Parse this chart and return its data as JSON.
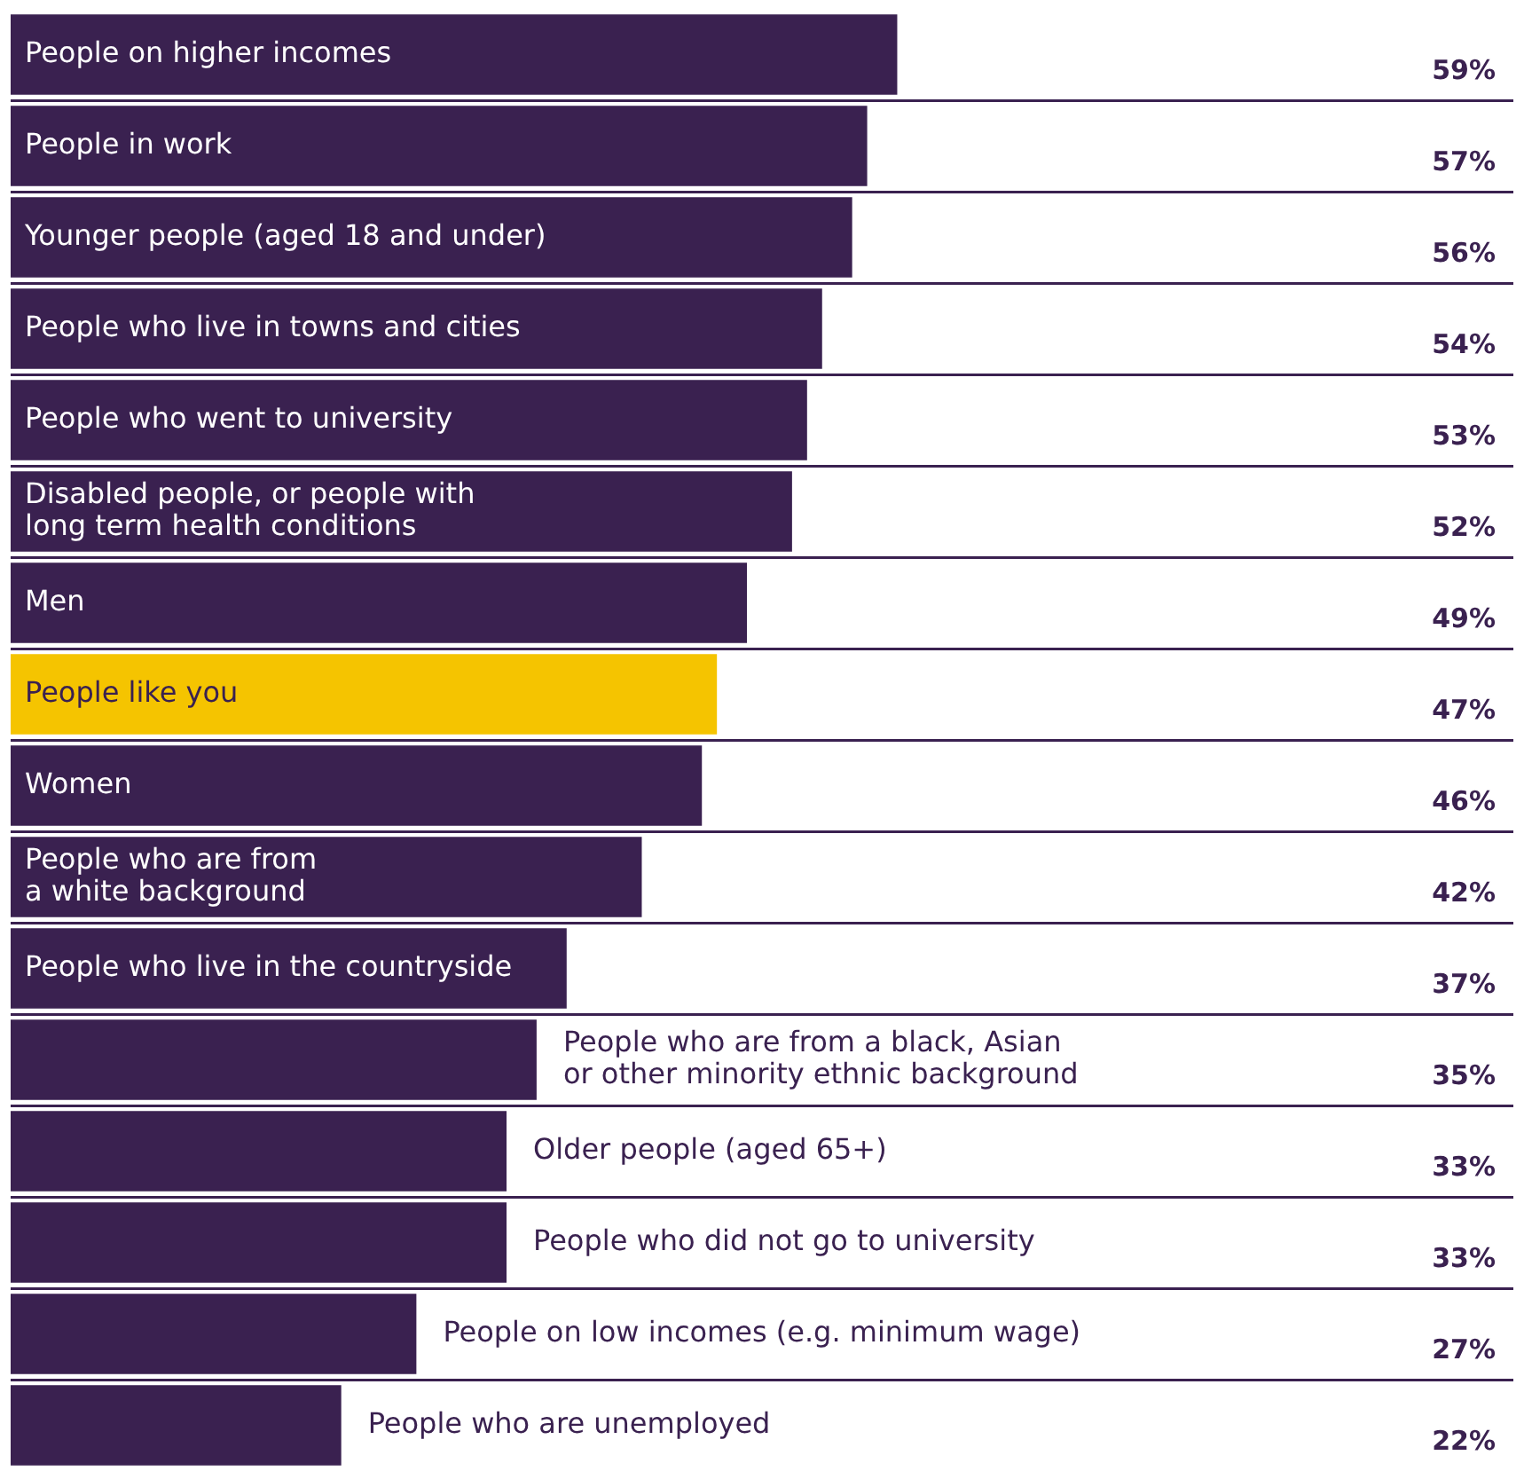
{
  "chart_data": {
    "type": "bar",
    "orientation": "horizontal",
    "categories": [
      "People on higher incomes",
      "People in work",
      "Younger people (aged 18 and under)",
      "People who live in towns and cities",
      "People who went to university",
      "Disabled people, or people with\nlong term health conditions",
      "Men",
      "People like you",
      "Women",
      "People who are from\na white background",
      "People who live in the countryside",
      "People who are from a black, Asian\nor other minority ethnic background",
      "Older people (aged 65+)",
      "People who did not go to university",
      "People on low incomes (e.g. minimum wage)",
      "People who are unemployed"
    ],
    "values": [
      59,
      57,
      56,
      54,
      53,
      52,
      49,
      47,
      46,
      42,
      37,
      35,
      33,
      33,
      27,
      22
    ],
    "colors": [
      "#3a2150",
      "#3a2150",
      "#3a2150",
      "#3a2150",
      "#3a2150",
      "#3a2150",
      "#3a2150",
      "#f5c400",
      "#3a2150",
      "#3a2150",
      "#3a2150",
      "#3a2150",
      "#3a2150",
      "#3a2150",
      "#3a2150",
      "#3a2150"
    ],
    "value_labels": [
      "59%",
      "57%",
      "56%",
      "54%",
      "53%",
      "52%",
      "49%",
      "47%",
      "46%",
      "42%",
      "37%",
      "35%",
      "33%",
      "33%",
      "27%",
      "22%"
    ],
    "xlim": [
      0,
      100
    ],
    "grid": "y"
  }
}
